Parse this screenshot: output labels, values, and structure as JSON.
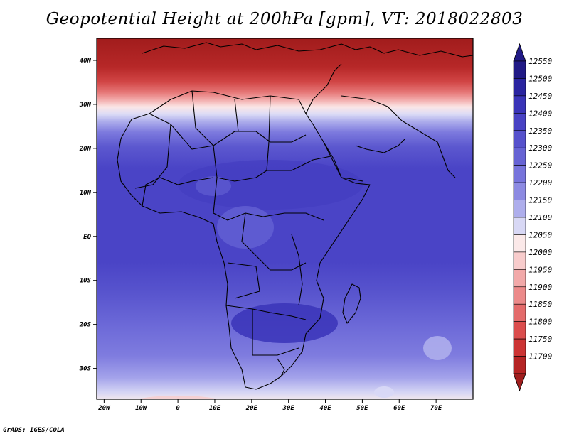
{
  "title": "Geopotential Height at 200hPa [gpm], VT: 2018022803",
  "credit": "GrADS: IGES/COLA",
  "map": {
    "region": "Africa",
    "lon_range": [
      -22,
      80
    ],
    "lat_range": [
      -37,
      45
    ],
    "lat_ticks": [
      {
        "value": 40,
        "label": "40N"
      },
      {
        "value": 30,
        "label": "30N"
      },
      {
        "value": 20,
        "label": "20N"
      },
      {
        "value": 10,
        "label": "10N"
      },
      {
        "value": 0,
        "label": "EQ"
      },
      {
        "value": -10,
        "label": "10S"
      },
      {
        "value": -20,
        "label": "20S"
      },
      {
        "value": -30,
        "label": "30S"
      }
    ],
    "lon_ticks": [
      {
        "value": -20,
        "label": "20W"
      },
      {
        "value": -10,
        "label": "10W"
      },
      {
        "value": 0,
        "label": "0"
      },
      {
        "value": 10,
        "label": "10E"
      },
      {
        "value": 20,
        "label": "20E"
      },
      {
        "value": 30,
        "label": "30E"
      },
      {
        "value": 40,
        "label": "40E"
      },
      {
        "value": 50,
        "label": "50E"
      },
      {
        "value": 60,
        "label": "60E"
      },
      {
        "value": 70,
        "label": "70E"
      }
    ]
  },
  "colorbar": {
    "levels": [
      {
        "label": "12550",
        "color": "#211a86"
      },
      {
        "label": "12500",
        "color": "#2a24a0"
      },
      {
        "label": "12450",
        "color": "#3a34b8"
      },
      {
        "label": "12400",
        "color": "#4842c4"
      },
      {
        "label": "12350",
        "color": "#5651cc"
      },
      {
        "label": "12300",
        "color": "#6663d4"
      },
      {
        "label": "12250",
        "color": "#7774dc"
      },
      {
        "label": "12200",
        "color": "#8c8ae2"
      },
      {
        "label": "12150",
        "color": "#aeaeec"
      },
      {
        "label": "12100",
        "color": "#d8d8f5"
      },
      {
        "label": "12050",
        "color": "#fbe9e9"
      },
      {
        "label": "12000",
        "color": "#f8cccc"
      },
      {
        "label": "11950",
        "color": "#f2a9a9"
      },
      {
        "label": "11900",
        "color": "#ec8a8a"
      },
      {
        "label": "11850",
        "color": "#e46b6b"
      },
      {
        "label": "11800",
        "color": "#db4d4d"
      },
      {
        "label": "11750",
        "color": "#cc3434"
      },
      {
        "label": "11700",
        "color": "#b52424"
      }
    ],
    "bottom_color": "#a01e1e"
  }
}
